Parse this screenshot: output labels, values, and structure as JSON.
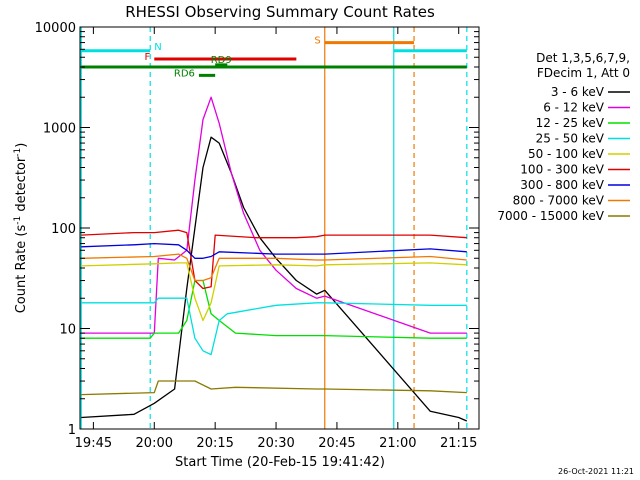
{
  "chart_data": {
    "type": "line",
    "title": "RHESSI Observing Summary Count Rates",
    "xlabel": "Start Time (20-Feb-15 19:41:42)",
    "ylabel_main": "Count Rate (s",
    "ylabel_sup1": "-1",
    "ylabel_mid": " detector",
    "ylabel_sup2": "-1",
    "ylabel_end": ")",
    "y_scale": "log",
    "ylim": [
      1,
      10000
    ],
    "xlim": [
      "19:41:42",
      "21:20:00"
    ],
    "x_ticks": [
      "19:45",
      "20:00",
      "20:15",
      "20:30",
      "20:45",
      "21:00",
      "21:15"
    ],
    "y_ticks": [
      "1",
      "10",
      "100",
      "1000",
      "10000"
    ],
    "footer_date": "26-Oct-2021 11:21",
    "legend_header": [
      "Det 1,3,5,6,7,9,",
      "FDecim 1, Att 0"
    ],
    "series": [
      {
        "name": "3 - 6 keV",
        "color": "#000000",
        "points": [
          [
            "19:42",
            1.3
          ],
          [
            "19:55",
            1.4
          ],
          [
            "20:00",
            1.8
          ],
          [
            "20:05",
            2.5
          ],
          [
            "20:08",
            25
          ],
          [
            "20:10",
            100
          ],
          [
            "20:12",
            400
          ],
          [
            "20:14",
            800
          ],
          [
            "20:16",
            700
          ],
          [
            "20:19",
            350
          ],
          [
            "20:22",
            160
          ],
          [
            "20:26",
            80
          ],
          [
            "20:30",
            50
          ],
          [
            "20:35",
            30
          ],
          [
            "20:40",
            22
          ],
          [
            "20:42",
            24
          ],
          [
            "21:08",
            1.5
          ],
          [
            "21:15",
            1.3
          ],
          [
            "21:17",
            1.2
          ]
        ]
      },
      {
        "name": "6 - 12 keV",
        "color": "#e000e0",
        "points": [
          [
            "19:42",
            9
          ],
          [
            "20:00",
            9
          ],
          [
            "20:01",
            50
          ],
          [
            "20:05",
            48
          ],
          [
            "20:08",
            60
          ],
          [
            "20:10",
            300
          ],
          [
            "20:12",
            1200
          ],
          [
            "20:14",
            2000
          ],
          [
            "20:16",
            1100
          ],
          [
            "20:19",
            350
          ],
          [
            "20:22",
            140
          ],
          [
            "20:26",
            60
          ],
          [
            "20:30",
            38
          ],
          [
            "20:35",
            25
          ],
          [
            "20:40",
            20
          ],
          [
            "20:42",
            21
          ],
          [
            "21:08",
            9
          ],
          [
            "21:17",
            9
          ]
        ]
      },
      {
        "name": "12 - 25 keV",
        "color": "#00e000",
        "points": [
          [
            "19:42",
            8
          ],
          [
            "19:59",
            8
          ],
          [
            "20:00",
            9
          ],
          [
            "20:06",
            9
          ],
          [
            "20:08",
            12
          ],
          [
            "20:10",
            30
          ],
          [
            "20:12",
            30
          ],
          [
            "20:14",
            14
          ],
          [
            "20:16",
            12
          ],
          [
            "20:20",
            9
          ],
          [
            "20:30",
            8.5
          ],
          [
            "20:40",
            8.5
          ],
          [
            "20:42",
            8.5
          ],
          [
            "21:08",
            8
          ],
          [
            "21:17",
            8
          ]
        ]
      },
      {
        "name": "25 - 50 keV",
        "color": "#00e0e0",
        "points": [
          [
            "19:42",
            18
          ],
          [
            "20:00",
            18
          ],
          [
            "20:01",
            20
          ],
          [
            "20:08",
            20
          ],
          [
            "20:10",
            8
          ],
          [
            "20:12",
            6
          ],
          [
            "20:14",
            5.5
          ],
          [
            "20:16",
            12
          ],
          [
            "20:18",
            14
          ],
          [
            "20:30",
            17
          ],
          [
            "20:40",
            18
          ],
          [
            "20:42",
            18
          ],
          [
            "21:08",
            17
          ],
          [
            "21:17",
            17
          ]
        ]
      },
      {
        "name": "50 - 100 keV",
        "color": "#d0d000",
        "points": [
          [
            "19:42",
            42
          ],
          [
            "20:00",
            44
          ],
          [
            "20:06",
            45
          ],
          [
            "20:08",
            45
          ],
          [
            "20:10",
            20
          ],
          [
            "20:12",
            12
          ],
          [
            "20:14",
            18
          ],
          [
            "20:16",
            42
          ],
          [
            "20:30",
            43
          ],
          [
            "20:40",
            42
          ],
          [
            "20:42",
            43
          ],
          [
            "21:08",
            45
          ],
          [
            "21:17",
            43
          ]
        ]
      },
      {
        "name": "100 - 300 keV",
        "color": "#e00000",
        "points": [
          [
            "19:42",
            85
          ],
          [
            "19:55",
            90
          ],
          [
            "20:00",
            90
          ],
          [
            "20:06",
            95
          ],
          [
            "20:08",
            90
          ],
          [
            "20:10",
            30
          ],
          [
            "20:12",
            25
          ],
          [
            "20:14",
            26
          ],
          [
            "20:15",
            85
          ],
          [
            "20:25",
            80
          ],
          [
            "20:35",
            80
          ],
          [
            "20:40",
            82
          ],
          [
            "20:42",
            85
          ],
          [
            "21:08",
            85
          ],
          [
            "21:17",
            80
          ]
        ]
      },
      {
        "name": "300 - 800 keV",
        "color": "#0000e0",
        "points": [
          [
            "19:42",
            65
          ],
          [
            "19:55",
            68
          ],
          [
            "20:00",
            70
          ],
          [
            "20:06",
            68
          ],
          [
            "20:08",
            60
          ],
          [
            "20:10",
            50
          ],
          [
            "20:12",
            50
          ],
          [
            "20:14",
            52
          ],
          [
            "20:16",
            58
          ],
          [
            "20:30",
            55
          ],
          [
            "20:40",
            55
          ],
          [
            "20:42",
            55
          ],
          [
            "21:08",
            62
          ],
          [
            "21:17",
            58
          ]
        ]
      },
      {
        "name": "800 - 7000 keV",
        "color": "#f07800",
        "points": [
          [
            "19:42",
            50
          ],
          [
            "20:00",
            52
          ],
          [
            "20:06",
            55
          ],
          [
            "20:08",
            50
          ],
          [
            "20:10",
            30
          ],
          [
            "20:12",
            30
          ],
          [
            "20:14",
            32
          ],
          [
            "20:16",
            50
          ],
          [
            "20:30",
            50
          ],
          [
            "20:40",
            48
          ],
          [
            "20:42",
            48
          ],
          [
            "21:08",
            52
          ],
          [
            "21:17",
            48
          ]
        ]
      },
      {
        "name": "7000 - 15000 keV",
        "color": "#8a7a00",
        "points": [
          [
            "19:42",
            2.2
          ],
          [
            "20:00",
            2.3
          ],
          [
            "20:01",
            3.0
          ],
          [
            "20:10",
            3.0
          ],
          [
            "20:14",
            2.5
          ],
          [
            "20:20",
            2.6
          ],
          [
            "20:40",
            2.5
          ],
          [
            "20:42",
            2.5
          ],
          [
            "21:08",
            2.4
          ],
          [
            "21:17",
            2.3
          ]
        ]
      }
    ],
    "markers": {
      "vertical_lines": [
        {
          "time": "19:42",
          "color": "#00e0e0",
          "style": "solid"
        },
        {
          "time": "19:59",
          "color": "#00e0e0",
          "style": "dashed"
        },
        {
          "time": "20:42",
          "color": "#f07800",
          "style": "solid"
        },
        {
          "time": "20:59",
          "color": "#00e0e0",
          "style": "solid"
        },
        {
          "time": "21:04",
          "color": "#f07800",
          "style": "dashed"
        },
        {
          "time": "21:17",
          "color": "#00e0e0",
          "style": "dashed"
        }
      ],
      "bars": [
        {
          "label": "N",
          "color": "#00e0e0",
          "start": "19:42",
          "end": "19:59",
          "value": 5800,
          "label_pos": "end"
        },
        {
          "label": "N",
          "color": "#00e0e0",
          "start": "20:59",
          "end": "21:17",
          "value": 5800,
          "label_pos": "none"
        },
        {
          "label": "S",
          "color": "#f07800",
          "start": "20:42",
          "end": "21:04",
          "value": 7000,
          "label_pos": "start"
        },
        {
          "label": "F",
          "color": "#e00000",
          "start": "20:00",
          "end": "20:35",
          "value": 4800,
          "label_pos": "start"
        },
        {
          "label": "RD9",
          "color": "#008000",
          "start": "20:15",
          "end": "20:18",
          "value": 4200,
          "label_pos": "above"
        },
        {
          "label": "",
          "color": "#008000",
          "start": "19:42",
          "end": "21:17",
          "value": 4000,
          "label_pos": "none"
        },
        {
          "label": "RD6",
          "color": "#008000",
          "start": "20:11",
          "end": "20:15",
          "value": 3300,
          "label_pos": "start"
        }
      ]
    }
  }
}
